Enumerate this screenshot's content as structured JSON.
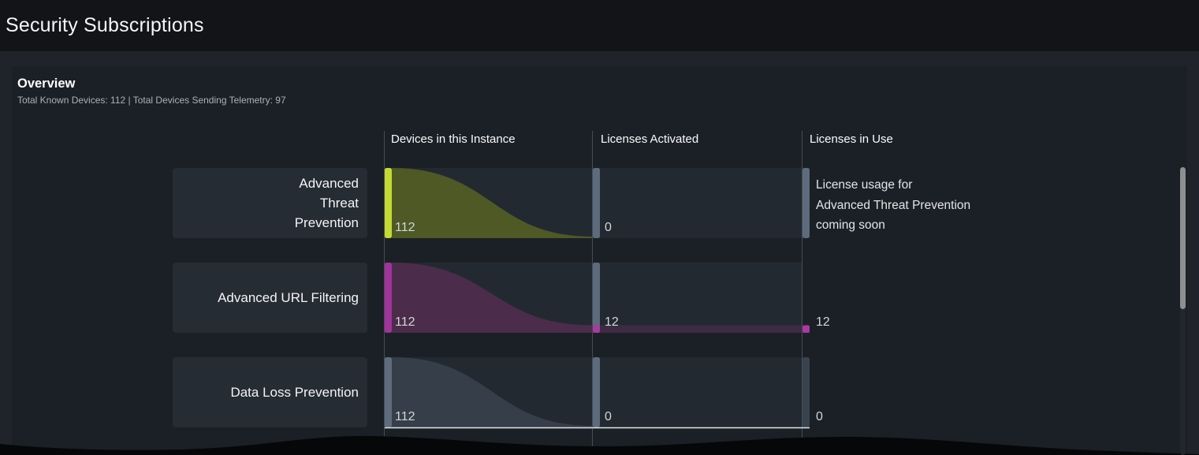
{
  "page": {
    "title": "Security Subscriptions"
  },
  "overview": {
    "title": "Overview",
    "subtitle": "Total Known Devices: 112 | Total Devices Sending Telemetry: 97"
  },
  "chart_data": {
    "type": "sankey",
    "columns": [
      "Devices in this Instance",
      "Licenses Activated",
      "Licenses in Use"
    ],
    "max_value": 112,
    "rows": [
      {
        "label": "Advanced Threat Prevention",
        "label_lines": [
          "Advanced",
          "Threat",
          "Prevention"
        ],
        "devices_in_instance": 112,
        "licenses_activated": 0,
        "licenses_in_use": null,
        "licenses_in_use_note": [
          "License usage for",
          "Advanced Threat Prevention",
          "coming soon"
        ],
        "colors": {
          "node": "#c4da33",
          "flow": "#4e5926",
          "activated_node": "#5d6b7d",
          "in_use_node": "#5d6b7d"
        }
      },
      {
        "label": "Advanced URL Filtering",
        "label_lines": [
          "Advanced URL Filtering"
        ],
        "devices_in_instance": 112,
        "licenses_activated": 12,
        "licenses_in_use": 12,
        "colors": {
          "node": "#a1339b",
          "flow": "#4b2d4b",
          "activated_node": "#5d6b7d",
          "activated_cap": "#a83ba0",
          "ribbon": "#3f2a44",
          "in_use_node": "#a83ba0"
        }
      },
      {
        "label": "Data Loss Prevention",
        "label_lines": [
          "Data Loss Prevention"
        ],
        "devices_in_instance": 112,
        "licenses_activated": 0,
        "licenses_in_use": 0,
        "colors": {
          "node": "#5e6c7e",
          "flow": "#363f49",
          "activated_node": "#5d6b7d",
          "in_use_node": "#39434d"
        }
      }
    ],
    "partial_next_row": {
      "colors": {
        "node": "#ee97e0",
        "flow": "#8a5f80"
      }
    }
  }
}
